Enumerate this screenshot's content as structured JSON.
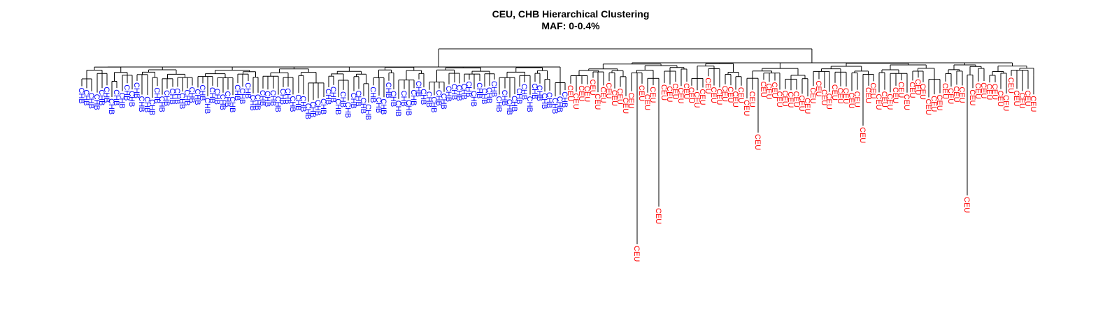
{
  "title": {
    "line1": "CEU, CHB Hierarchical Clustering",
    "line2": "MAF: 0-0.4%"
  },
  "legend_colors": {
    "CHB": "#0000ff",
    "CEU": "#ff0000"
  },
  "groups": [
    {
      "label": "CHB",
      "leaf_count": 97
    },
    {
      "label": "CEU",
      "leaf_count": 85
    }
  ]
}
